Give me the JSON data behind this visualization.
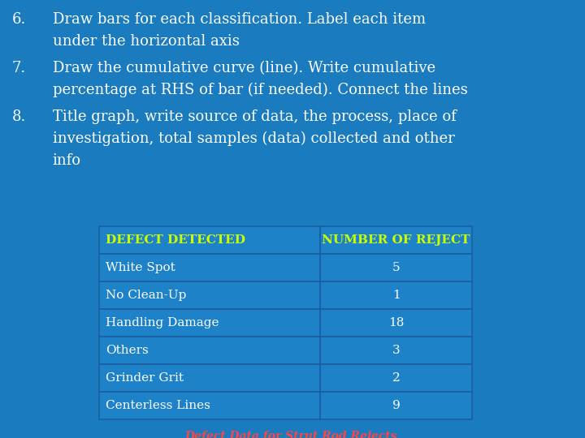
{
  "background_color": "#1a7bbf",
  "text_color": "#ffffff",
  "bullet_points": [
    {
      "number": "6.",
      "lines": [
        "Draw bars for each classification. Label each item",
        "under the horizontal axis"
      ]
    },
    {
      "number": "7.",
      "lines": [
        "Draw the cumulative curve (line). Write cumulative",
        "percentage at RHS of bar (if needed). Connect the lines"
      ]
    },
    {
      "number": "8.",
      "lines": [
        "Title graph, write source of data, the process, place of",
        "investigation, total samples (data) collected and other",
        "info"
      ]
    }
  ],
  "table_header": [
    "DEFECT DETECTED",
    "NUMBER OF REJECT"
  ],
  "table_header_color": "#ccff00",
  "table_data": [
    [
      "White Spot",
      "5"
    ],
    [
      "No Clean-Up",
      "1"
    ],
    [
      "Handling Damage",
      "18"
    ],
    [
      "Others",
      "3"
    ],
    [
      "Grinder Grit",
      "2"
    ],
    [
      "Centerless Lines",
      "9"
    ]
  ],
  "table_border_color": "#1a5fa0",
  "table_bg_color": "#1e82c8",
  "footer_text": "Defect Data for Strut Rod Rejects",
  "footer_color": "#ff4444"
}
